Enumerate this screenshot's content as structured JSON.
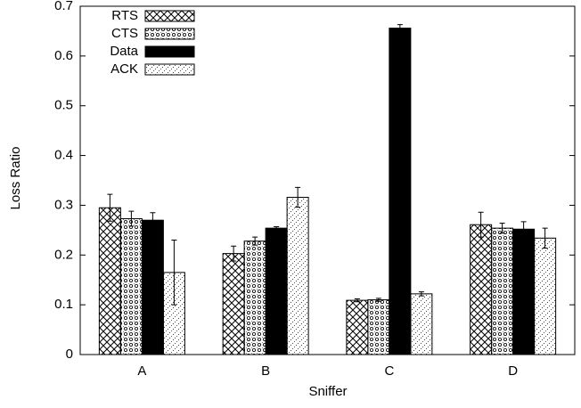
{
  "chart_data": {
    "type": "bar",
    "x_label": "Sniffer",
    "y_label": "Loss Ratio",
    "categories": [
      "A",
      "B",
      "C",
      "D"
    ],
    "series": [
      {
        "name": "RTS",
        "color": "#000000",
        "pattern": "crosshatch",
        "values": [
          0.295,
          0.203,
          0.109,
          0.261
        ],
        "errors": [
          0.027,
          0.015,
          0.003,
          0.025
        ]
      },
      {
        "name": "CTS",
        "color": "#000000",
        "pattern": "dots",
        "values": [
          0.273,
          0.228,
          0.11,
          0.254
        ],
        "errors": [
          0.015,
          0.008,
          0.003,
          0.01
        ]
      },
      {
        "name": "Data",
        "color": "#000000",
        "pattern": "solid",
        "values": [
          0.27,
          0.254,
          0.656,
          0.252
        ],
        "errors": [
          0.015,
          0.003,
          0.007,
          0.015
        ]
      },
      {
        "name": "ACK",
        "color": "#000000",
        "pattern": "sparse",
        "values": [
          0.165,
          0.316,
          0.122,
          0.234
        ],
        "errors": [
          0.065,
          0.02,
          0.004,
          0.02
        ]
      }
    ],
    "ylim": [
      0,
      0.7
    ],
    "yticks": [
      0,
      0.1,
      0.2,
      0.3,
      0.4,
      0.5,
      0.6,
      0.7
    ],
    "grid": false,
    "legend": "top-left"
  }
}
